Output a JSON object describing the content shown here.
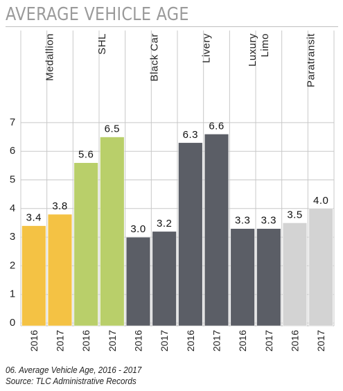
{
  "title": "AVERAGE VEHICLE AGE",
  "caption": {
    "line1": "06. Average Vehicle Age, 2016 - 2017",
    "line2": "Source: TLC Administrative Records"
  },
  "chart_data": {
    "type": "bar",
    "ylim": [
      0,
      7
    ],
    "yticks": [
      "0",
      "1",
      "2",
      "3",
      "4",
      "5",
      "6",
      "7"
    ],
    "grid": true,
    "groups": [
      {
        "name": "Medallion",
        "color": "#f4c244",
        "bars": [
          {
            "year": "2016",
            "value": 3.4,
            "label": "3.4"
          },
          {
            "year": "2017",
            "value": 3.8,
            "label": "3.8"
          }
        ]
      },
      {
        "name": "SHL",
        "color": "#b9cf6a",
        "bars": [
          {
            "year": "2016",
            "value": 5.6,
            "label": "5.6"
          },
          {
            "year": "2017",
            "value": 6.5,
            "label": "6.5"
          }
        ]
      },
      {
        "name": "Black Car",
        "color": "#5b5e66",
        "bars": [
          {
            "year": "2016",
            "value": 3.0,
            "label": "3.0"
          },
          {
            "year": "2017",
            "value": 3.2,
            "label": "3.2"
          }
        ]
      },
      {
        "name": "Livery",
        "color": "#5b5e66",
        "bars": [
          {
            "year": "2016",
            "value": 6.3,
            "label": "6.3"
          },
          {
            "year": "2017",
            "value": 6.6,
            "label": "6.6"
          }
        ]
      },
      {
        "name": "Luxury\nLimo",
        "color": "#5b5e66",
        "bars": [
          {
            "year": "2016",
            "value": 3.3,
            "label": "3.3"
          },
          {
            "year": "2017",
            "value": 3.3,
            "label": "3.3"
          }
        ]
      },
      {
        "name": "Paratransit",
        "color": "#d3d3d3",
        "bars": [
          {
            "year": "2016",
            "value": 3.5,
            "label": "3.5"
          },
          {
            "year": "2017",
            "value": 4.0,
            "label": "4.0"
          }
        ]
      }
    ]
  }
}
